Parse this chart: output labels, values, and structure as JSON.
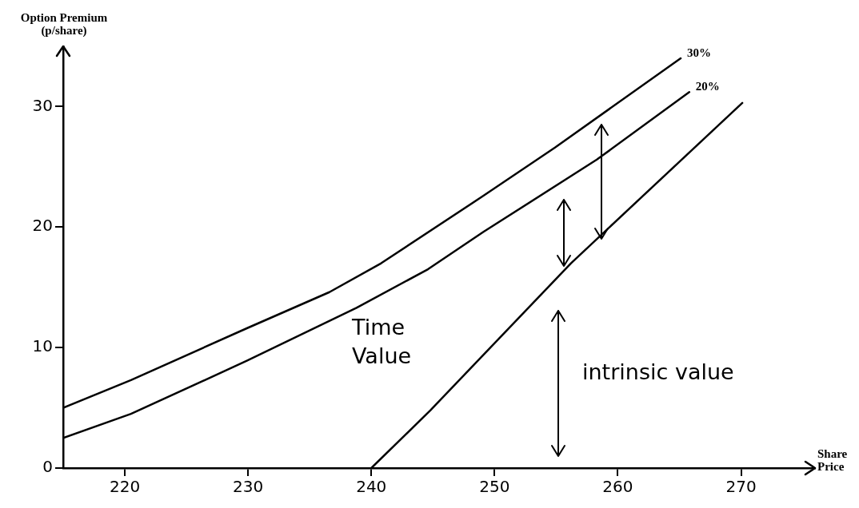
{
  "chart_data": {
    "type": "line",
    "xlabel": "Share Price",
    "ylabel": "Option Premium (p/share)",
    "xlim": [
      215,
      276
    ],
    "ylim": [
      0,
      35
    ],
    "xticks": [
      220,
      230,
      240,
      250,
      260,
      270
    ],
    "yticks": [
      0,
      10,
      20,
      30
    ],
    "grid": false,
    "legend": false,
    "marker": "none",
    "line_style": "solid",
    "series": [
      {
        "name": "30%",
        "color": "#000000",
        "x": [
          215,
          220.5,
          229.9,
          236.6,
          240.8,
          249.1,
          254.9,
          265.1
        ],
        "values": [
          5.0,
          7.3,
          11.6,
          14.6,
          17.0,
          22.6,
          26.6,
          34.0
        ]
      },
      {
        "name": "20%",
        "color": "#000000",
        "x": [
          215,
          220.5,
          229.9,
          238.8,
          244.6,
          249.1,
          258.3,
          265.8
        ],
        "values": [
          2.5,
          4.5,
          8.9,
          13.3,
          16.5,
          19.6,
          25.6,
          31.2
        ]
      },
      {
        "color": "#000000",
        "x": [
          240,
          244.8,
          256.2,
          270.1
        ],
        "values": [
          0,
          4.8,
          17.0,
          30.3
        ]
      }
    ],
    "annotations": [
      "Time Value",
      "intrinsic value"
    ]
  }
}
